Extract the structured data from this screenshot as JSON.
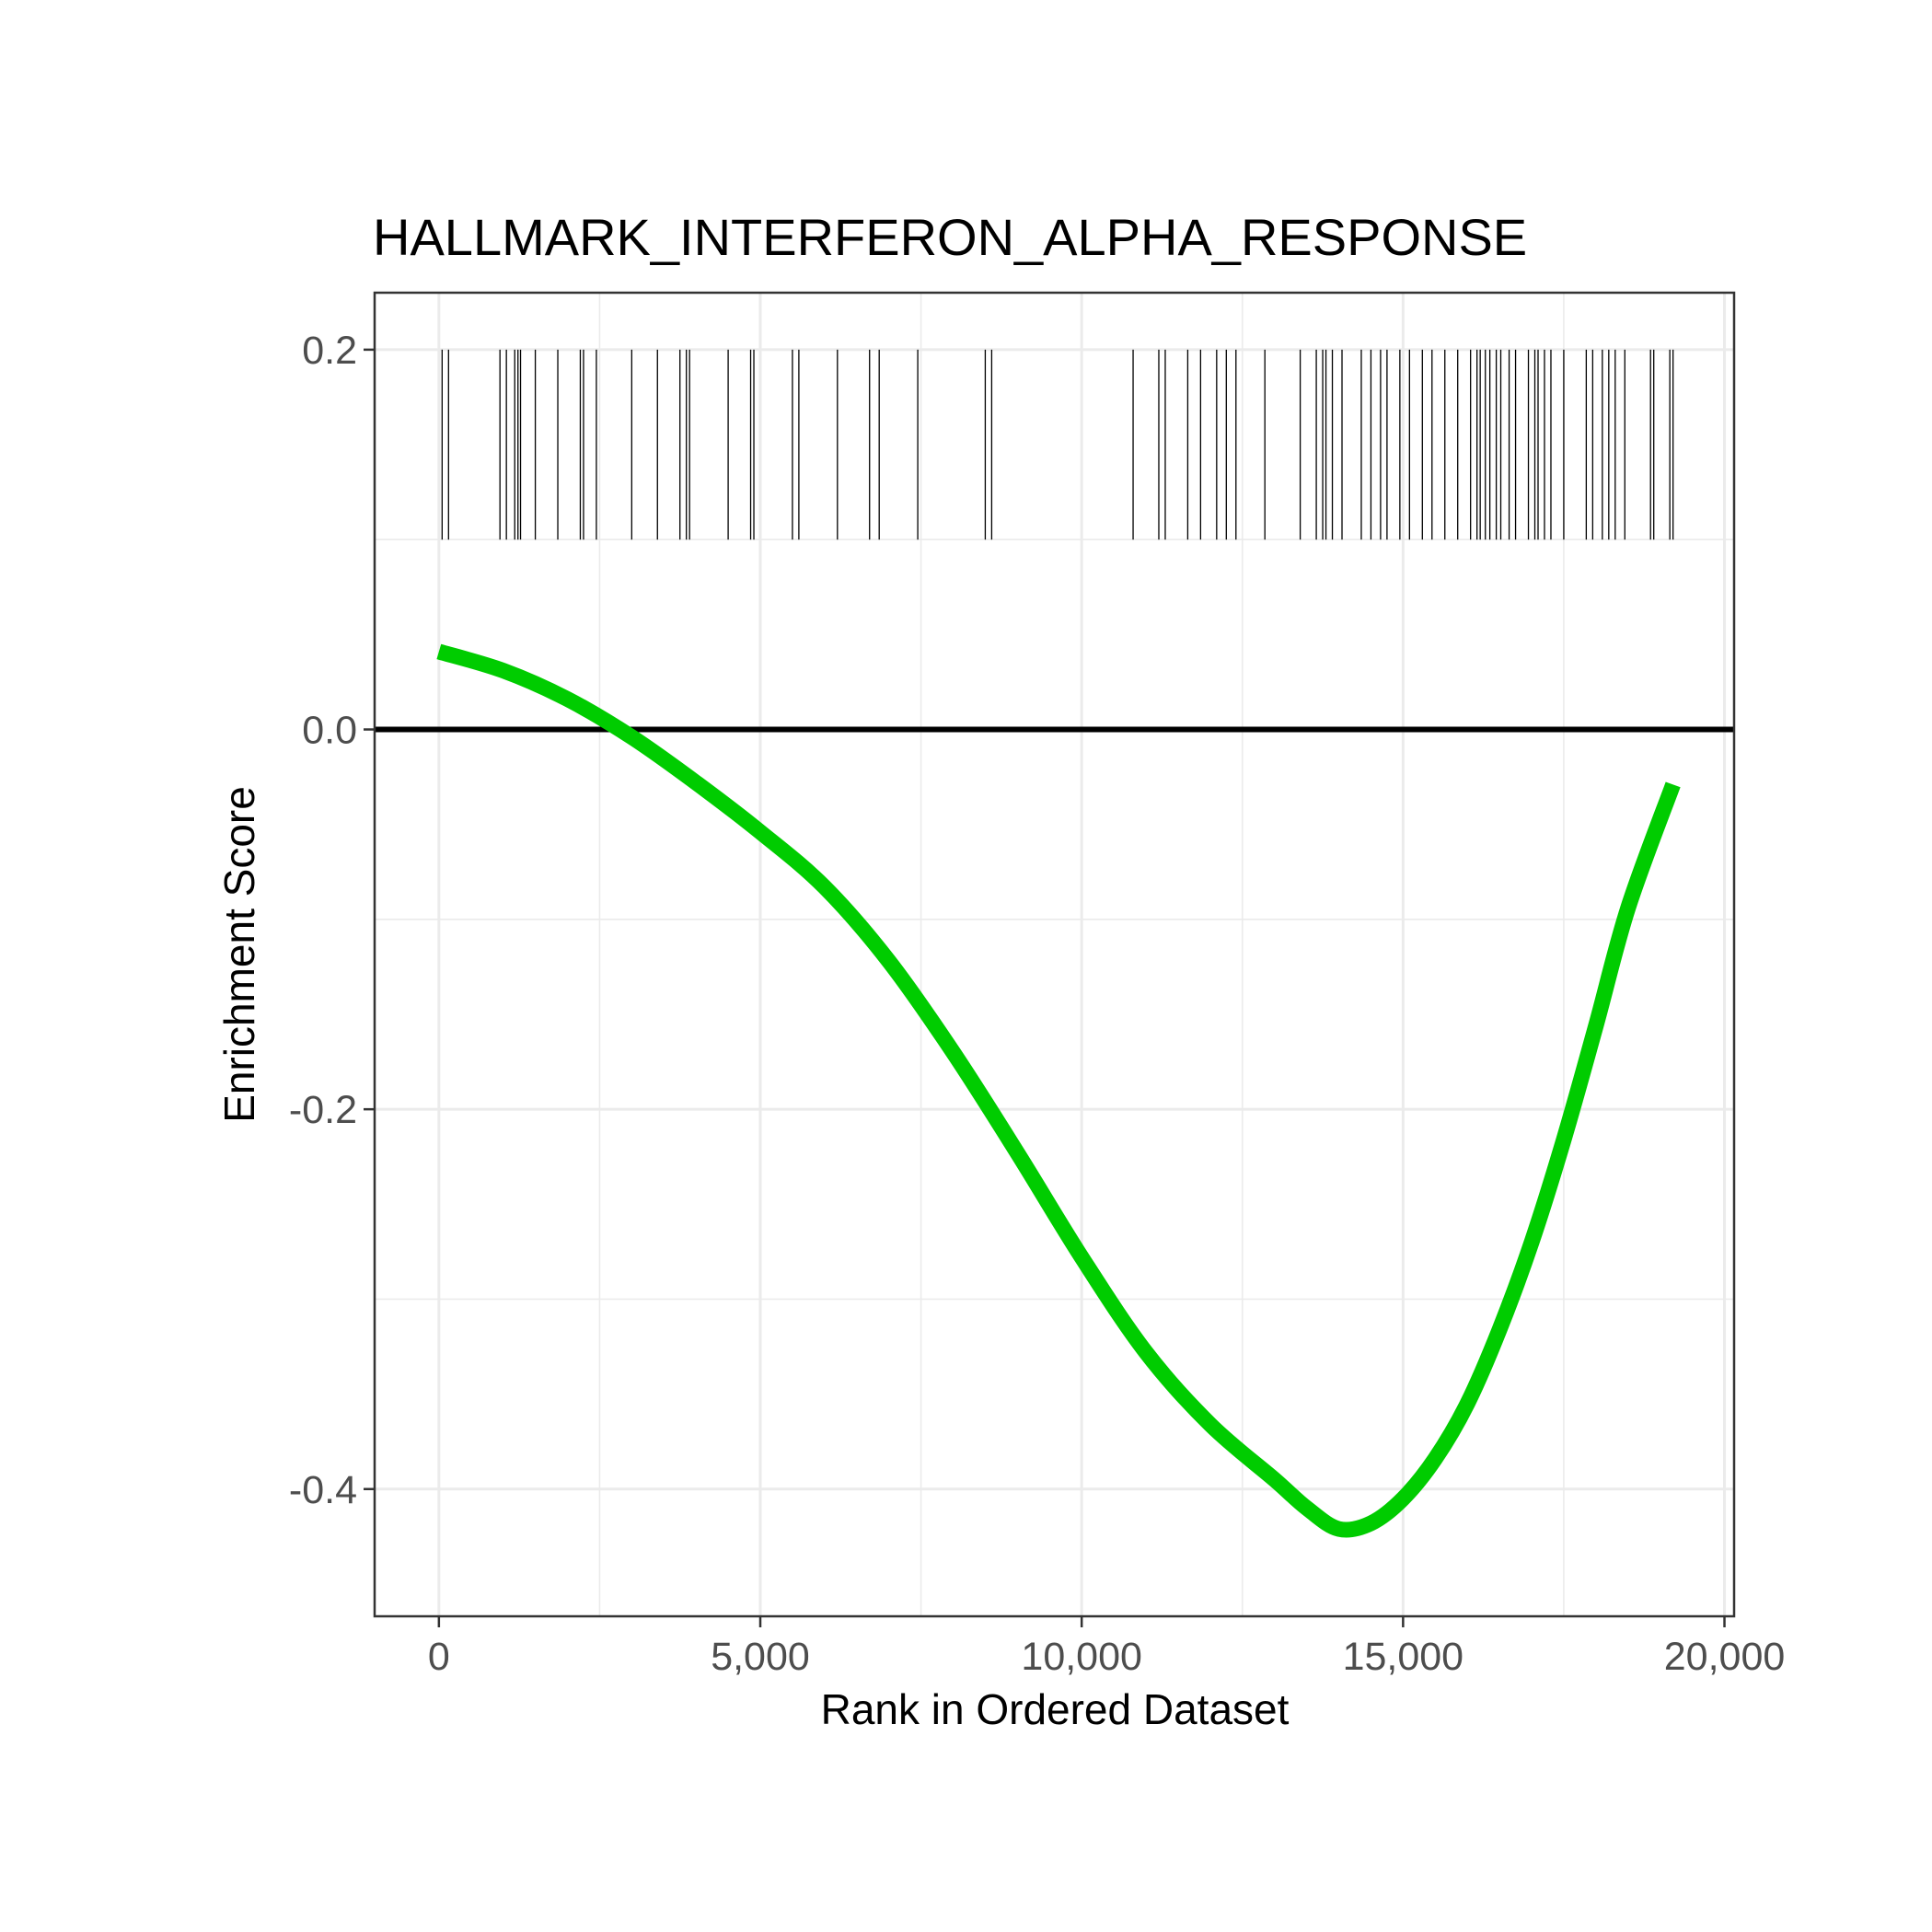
{
  "chart_data": {
    "type": "line",
    "title": "HALLMARK_INTERFERON_ALPHA_RESPONSE",
    "xlabel": "Rank in Ordered Dataset",
    "ylabel": "Enrichment Score",
    "xlim": [
      -1000,
      20150
    ],
    "ylim": [
      -0.467,
      0.23
    ],
    "x_ticks": [
      0,
      5000,
      10000,
      15000,
      20000
    ],
    "x_tick_labels": [
      "0",
      "5,000",
      "10,000",
      "15,000",
      "20,000"
    ],
    "y_ticks": [
      -0.4,
      -0.2,
      0.0,
      0.2
    ],
    "y_tick_labels": [
      "-0.4",
      "-0.2",
      "0.0",
      "0.2"
    ],
    "y_minor_ticks": [
      -0.3,
      -0.1,
      0.1
    ],
    "x_minor_ticks": [
      2500,
      7500,
      12500,
      17500
    ],
    "grid": true,
    "series": [
      {
        "color": "#00cc00",
        "x": [
          0,
          1000,
          2000,
          3000,
          4000,
          5000,
          6000,
          7000,
          8000,
          9000,
          10000,
          11000,
          12000,
          13000,
          13500,
          14000,
          14500,
          15000,
          15500,
          16000,
          16500,
          17000,
          17500,
          18000,
          18500,
          19200
        ],
        "y": [
          0.041,
          0.031,
          0.016,
          -0.004,
          -0.028,
          -0.054,
          -0.083,
          -0.122,
          -0.17,
          -0.223,
          -0.278,
          -0.328,
          -0.366,
          -0.395,
          -0.41,
          -0.421,
          -0.418,
          -0.405,
          -0.384,
          -0.355,
          -0.316,
          -0.27,
          -0.216,
          -0.156,
          -0.094,
          -0.029
        ]
      }
    ],
    "reference_line": {
      "y": 0.0,
      "color": "#000000"
    },
    "gene_hits": {
      "y_range": [
        0.1,
        0.2
      ],
      "color": "#000000",
      "positions": [
        50,
        150,
        950,
        1050,
        1180,
        1230,
        1270,
        1500,
        1850,
        2200,
        2250,
        2450,
        3000,
        3400,
        3750,
        3850,
        3900,
        4500,
        4850,
        4900,
        5500,
        5600,
        6200,
        6700,
        6850,
        7450,
        8500,
        8600,
        10800,
        11200,
        11300,
        11650,
        11850,
        12100,
        12250,
        12400,
        12850,
        13400,
        13650,
        13750,
        13800,
        13900,
        14050,
        14350,
        14500,
        14650,
        14750,
        14950,
        15100,
        15300,
        15450,
        15650,
        15850,
        16050,
        16150,
        16200,
        16280,
        16350,
        16450,
        16520,
        16650,
        16750,
        16950,
        17050,
        17100,
        17200,
        17300,
        17500,
        17850,
        17950,
        18100,
        18200,
        18300,
        18450,
        18850,
        18900,
        19150,
        19200
      ]
    }
  }
}
